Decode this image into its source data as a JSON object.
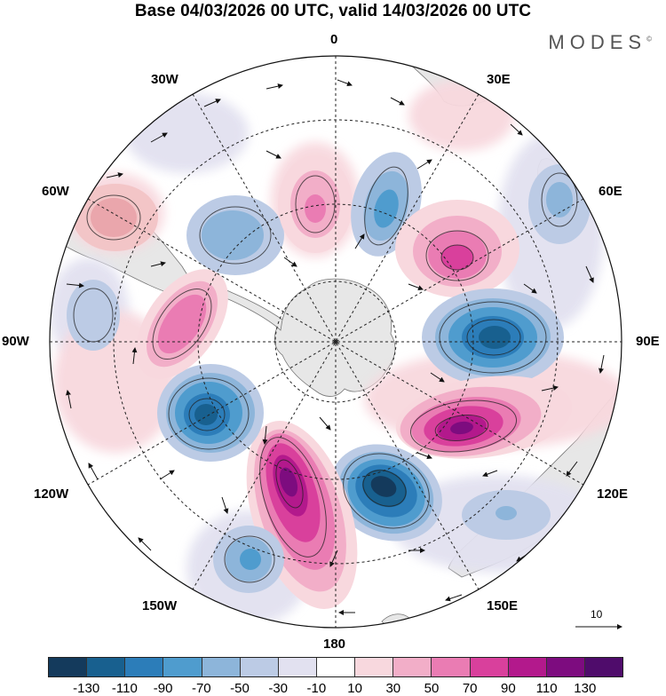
{
  "title": "Base 04/03/2026 00 UTC, valid 14/03/2026 00 UTC",
  "brand": "MODES",
  "brand_mark": "©",
  "longitude_labels": {
    "top": "0",
    "bottom": "180",
    "left": "90W",
    "right": "90E",
    "nw1": "30W",
    "nw2": "60W",
    "ne1": "30E",
    "ne2": "60E",
    "sw1": "120W",
    "sw2": "150W",
    "se1": "120E",
    "se2": "150E"
  },
  "vector_scale_label": "10",
  "colorbar": {
    "ticks": [
      "-130",
      "-110",
      "-90",
      "-70",
      "-50",
      "-30",
      "-10",
      "10",
      "30",
      "50",
      "70",
      "90",
      "110",
      "130"
    ],
    "colors": [
      "#143a5c",
      "#18608f",
      "#2c7db9",
      "#4f9cce",
      "#8db5da",
      "#bccbe5",
      "#e2e1f0",
      "#ffffff",
      "#f8d8de",
      "#f2aec8",
      "#ea7cb3",
      "#d9409c",
      "#b3198c",
      "#7d0c7f",
      "#4f0c6b"
    ]
  },
  "anomaly_features": [
    {
      "name": "Positive anomaly west of Antarctic Peninsula",
      "sign": "+",
      "peak": 130
    },
    {
      "name": "Negative anomaly south of Australia",
      "sign": "-",
      "peak": -130
    },
    {
      "name": "Positive anomaly south Indian Ocean",
      "sign": "+",
      "peak": 110
    },
    {
      "name": "Negative anomaly southwest Indian Ocean",
      "sign": "-",
      "peak": -110
    },
    {
      "name": "Negative anomaly South Pacific",
      "sign": "-",
      "peak": -110
    }
  ]
}
